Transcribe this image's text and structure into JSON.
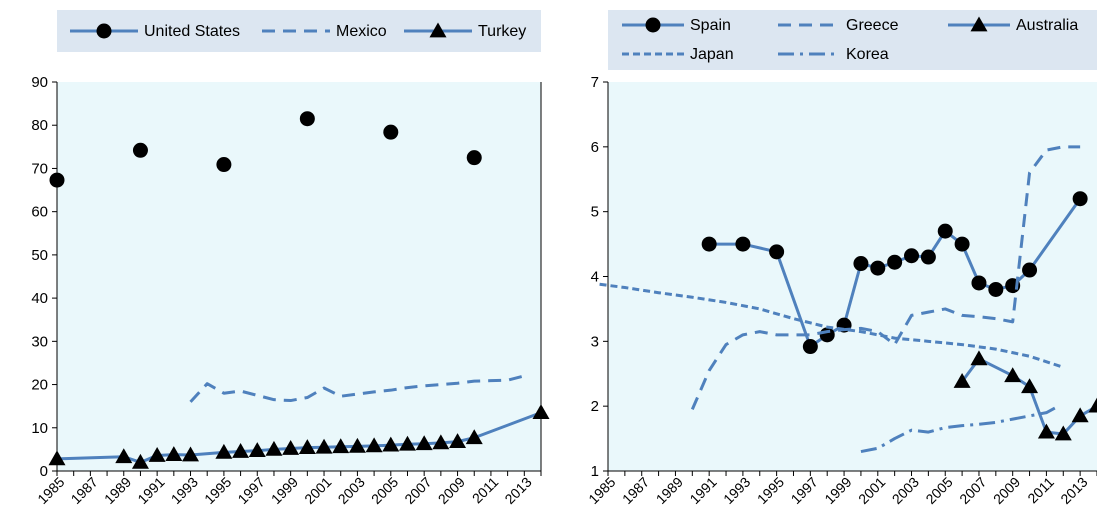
{
  "chart_data": [
    {
      "type": "line",
      "title": "",
      "xlabel": "",
      "ylabel": "",
      "ylim": [
        0,
        90
      ],
      "xlim": [
        1985,
        2014
      ],
      "yticks": [
        0,
        10,
        20,
        30,
        40,
        50,
        60,
        70,
        80,
        90
      ],
      "xtick_labels": [
        "1985",
        "1987",
        "1989",
        "1991",
        "1993",
        "1995",
        "1997",
        "1999",
        "2001",
        "2003",
        "2005",
        "2007",
        "2009",
        "2011",
        "2013"
      ],
      "grid": false,
      "legend": "top",
      "series": [
        {
          "name": "United States",
          "style": "markers",
          "marker": "circle",
          "color": "#000000",
          "points": [
            [
              1985,
              67.3
            ],
            [
              1990,
              74.2
            ],
            [
              1995,
              70.9
            ],
            [
              2000,
              81.5
            ],
            [
              2005,
              78.4
            ],
            [
              2010,
              72.5
            ]
          ]
        },
        {
          "name": "Mexico",
          "style": "dashed",
          "color": "#4f81bd",
          "points": [
            [
              1993,
              16.0
            ],
            [
              1994,
              20.2
            ],
            [
              1995,
              18.0
            ],
            [
              1996,
              18.5
            ],
            [
              1997,
              17.5
            ],
            [
              1998,
              16.5
            ],
            [
              1999,
              16.3
            ],
            [
              2000,
              17.0
            ],
            [
              2001,
              19.2
            ],
            [
              2002,
              17.3
            ],
            [
              2003,
              17.8
            ],
            [
              2004,
              18.3
            ],
            [
              2005,
              18.7
            ],
            [
              2006,
              19.3
            ],
            [
              2007,
              19.7
            ],
            [
              2008,
              20.0
            ],
            [
              2009,
              20.3
            ],
            [
              2010,
              20.8
            ],
            [
              2011,
              20.9
            ],
            [
              2012,
              21.0
            ],
            [
              2013,
              22.0
            ]
          ]
        },
        {
          "name": "Turkey",
          "style": "line-markers",
          "marker": "triangle",
          "color": "#4f81bd",
          "points": [
            [
              1985,
              2.8
            ],
            [
              1989,
              3.3
            ],
            [
              1990,
              2.0
            ],
            [
              1991,
              3.6
            ],
            [
              1992,
              3.8
            ],
            [
              1993,
              3.7
            ],
            [
              1995,
              4.3
            ],
            [
              1996,
              4.5
            ],
            [
              1997,
              4.7
            ],
            [
              1998,
              5.0
            ],
            [
              1999,
              5.2
            ],
            [
              2000,
              5.4
            ],
            [
              2001,
              5.5
            ],
            [
              2002,
              5.6
            ],
            [
              2003,
              5.7
            ],
            [
              2004,
              5.8
            ],
            [
              2005,
              6.0
            ],
            [
              2006,
              6.2
            ],
            [
              2007,
              6.3
            ],
            [
              2008,
              6.5
            ],
            [
              2009,
              6.8
            ],
            [
              2010,
              7.7
            ],
            [
              2014,
              13.5
            ]
          ]
        }
      ]
    },
    {
      "type": "line",
      "title": "",
      "xlabel": "",
      "ylabel": "",
      "ylim": [
        1,
        7
      ],
      "xlim": [
        1985,
        2014
      ],
      "yticks": [
        1,
        2,
        3,
        4,
        5,
        6,
        7
      ],
      "xtick_labels": [
        "1985",
        "1987",
        "1989",
        "1991",
        "1993",
        "1995",
        "1997",
        "1999",
        "2001",
        "2003",
        "2005",
        "2007",
        "2009",
        "2011",
        "2013"
      ],
      "grid": false,
      "legend": "top",
      "series": [
        {
          "name": "Spain",
          "style": "line-markers",
          "marker": "circle",
          "color": "#4f81bd",
          "points": [
            [
              1991,
              4.5
            ],
            [
              1993,
              4.5
            ],
            [
              1995,
              4.38
            ],
            [
              1997,
              2.92
            ],
            [
              1998,
              3.1
            ],
            [
              1999,
              3.25
            ],
            [
              2000,
              4.2
            ],
            [
              2001,
              4.13
            ],
            [
              2002,
              4.22
            ],
            [
              2003,
              4.32
            ],
            [
              2004,
              4.3
            ],
            [
              2005,
              4.7
            ],
            [
              2006,
              4.5
            ],
            [
              2007,
              3.9
            ],
            [
              2008,
              3.8
            ],
            [
              2009,
              3.86
            ],
            [
              2010,
              4.1
            ],
            [
              2013,
              5.2
            ]
          ]
        },
        {
          "name": "Greece",
          "style": "dashed",
          "color": "#4f81bd",
          "points": [
            [
              1990,
              1.95
            ],
            [
              1991,
              2.55
            ],
            [
              1992,
              2.95
            ],
            [
              1993,
              3.1
            ],
            [
              1994,
              3.15
            ],
            [
              1995,
              3.1
            ],
            [
              1996,
              3.1
            ],
            [
              1997,
              3.1
            ],
            [
              1998,
              3.15
            ],
            [
              1999,
              3.18
            ],
            [
              2000,
              3.2
            ],
            [
              2001,
              3.15
            ],
            [
              2002,
              2.95
            ],
            [
              2003,
              3.4
            ],
            [
              2004,
              3.45
            ],
            [
              2005,
              3.5
            ],
            [
              2006,
              3.4
            ],
            [
              2007,
              3.38
            ],
            [
              2008,
              3.35
            ],
            [
              2009,
              3.3
            ],
            [
              2010,
              5.6
            ],
            [
              2011,
              5.95
            ],
            [
              2012,
              6.0
            ],
            [
              2013,
              6.0
            ]
          ]
        },
        {
          "name": "Australia",
          "style": "line-markers",
          "marker": "triangle",
          "color": "#4f81bd",
          "points": [
            [
              2006,
              2.38
            ],
            [
              2007,
              2.73
            ],
            [
              2009,
              2.47
            ],
            [
              2010,
              2.3
            ],
            [
              2011,
              1.6
            ],
            [
              2012,
              1.57
            ],
            [
              2013,
              1.85
            ],
            [
              2014,
              2.0
            ]
          ]
        },
        {
          "name": "Japan",
          "style": "short-dashed",
          "color": "#4f81bd",
          "points": [
            [
              1984.5,
              3.88
            ],
            [
              1986,
              3.83
            ],
            [
              1988,
              3.75
            ],
            [
              1990,
              3.68
            ],
            [
              1992,
              3.6
            ],
            [
              1994,
              3.5
            ],
            [
              1996,
              3.35
            ],
            [
              1998,
              3.22
            ],
            [
              2000,
              3.15
            ],
            [
              2002,
              3.05
            ],
            [
              2004,
              3.0
            ],
            [
              2006,
              2.95
            ],
            [
              2008,
              2.88
            ],
            [
              2010,
              2.77
            ],
            [
              2012,
              2.6
            ]
          ]
        },
        {
          "name": "Korea",
          "style": "dash-dot",
          "color": "#4f81bd",
          "points": [
            [
              2000,
              1.3
            ],
            [
              2001,
              1.35
            ],
            [
              2002,
              1.5
            ],
            [
              2003,
              1.63
            ],
            [
              2004,
              1.6
            ],
            [
              2005,
              1.67
            ],
            [
              2006,
              1.7
            ],
            [
              2007,
              1.72
            ],
            [
              2008,
              1.75
            ],
            [
              2009,
              1.8
            ],
            [
              2010,
              1.85
            ],
            [
              2011,
              1.9
            ],
            [
              2011.5,
              1.97
            ]
          ]
        }
      ]
    }
  ]
}
